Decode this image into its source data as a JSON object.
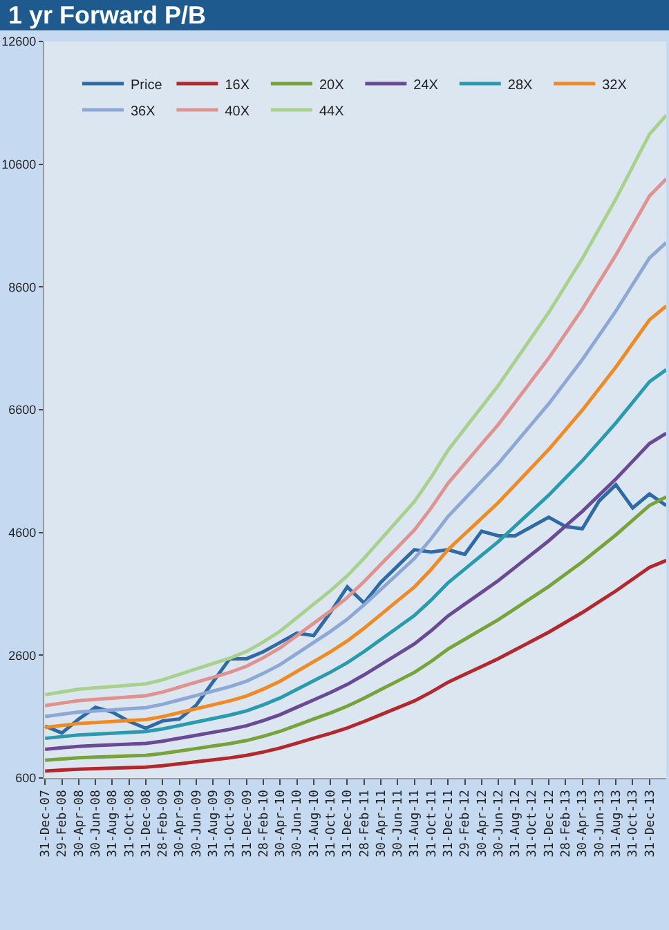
{
  "chart_data": {
    "type": "line",
    "title": "1 yr Forward P/B",
    "categories": [
      "31-Dec-07",
      "29-Feb-08",
      "30-Apr-08",
      "30-Jun-08",
      "31-Aug-08",
      "31-Oct-08",
      "31-Dec-08",
      "28-Feb-09",
      "30-Apr-09",
      "30-Jun-09",
      "31-Aug-09",
      "31-Oct-09",
      "31-Dec-09",
      "28-Feb-10",
      "30-Apr-10",
      "30-Jun-10",
      "31-Aug-10",
      "31-Oct-10",
      "31-Dec-10",
      "28-Feb-11",
      "30-Apr-11",
      "30-Jun-11",
      "31-Aug-11",
      "31-Oct-11",
      "31-Dec-11",
      "29-Feb-12",
      "30-Apr-12",
      "30-Jun-12",
      "31-Aug-12",
      "31-Oct-12",
      "31-Dec-12",
      "28-Feb-13",
      "30-Apr-13",
      "30-Jun-13",
      "31-Aug-13",
      "31-Oct-13",
      "31-Dec-13",
      null
    ],
    "ylim": [
      600,
      12600
    ],
    "yticks": [
      600,
      2600,
      4600,
      6600,
      8600,
      10600,
      12600
    ],
    "grid": false,
    "legend": "top left",
    "marker": "none",
    "line_style": "solid",
    "series": [
      {
        "name": "Price",
        "color": "#2e6aa6",
        "values": [
          1446,
          1333,
          1560,
          1750,
          1673,
          1523,
          1410,
          1530,
          1560,
          1786,
          2165,
          2543,
          2543,
          2657,
          2808,
          2959,
          2921,
          3299,
          3714,
          3450,
          3790,
          4055,
          4320,
          4281,
          4320,
          4244,
          4621,
          4546,
          4546,
          4697,
          4848,
          4697,
          4660,
          5113,
          5377,
          5000,
          5227,
          5038
        ]
      },
      {
        "name": "16X",
        "color": "#b3282d",
        "values": [
          712,
          728,
          744,
          752,
          760,
          768,
          776,
          800,
          832,
          864,
          896,
          928,
          968,
          1024,
          1088,
          1168,
          1248,
          1328,
          1416,
          1520,
          1632,
          1744,
          1856,
          2000,
          2160,
          2288,
          2416,
          2544,
          2688,
          2832,
          2976,
          3136,
          3296,
          3472,
          3648,
          3840,
          4032,
          4144
        ]
      },
      {
        "name": "20X",
        "color": "#77a33a",
        "values": [
          890,
          910,
          930,
          940,
          950,
          960,
          970,
          1000,
          1040,
          1080,
          1120,
          1160,
          1210,
          1280,
          1360,
          1460,
          1560,
          1660,
          1770,
          1900,
          2040,
          2180,
          2320,
          2500,
          2700,
          2860,
          3020,
          3180,
          3360,
          3540,
          3720,
          3920,
          4120,
          4340,
          4560,
          4800,
          5040,
          5180
        ]
      },
      {
        "name": "24X",
        "color": "#6a4a94",
        "values": [
          1068,
          1092,
          1116,
          1128,
          1140,
          1152,
          1164,
          1200,
          1248,
          1296,
          1344,
          1392,
          1452,
          1536,
          1632,
          1752,
          1872,
          1992,
          2124,
          2280,
          2448,
          2616,
          2784,
          3000,
          3240,
          3432,
          3624,
          3816,
          4032,
          4248,
          4464,
          4704,
          4944,
          5208,
          5472,
          5760,
          6048,
          6216
        ]
      },
      {
        "name": "28X",
        "color": "#2a9aaf",
        "values": [
          1246,
          1274,
          1302,
          1316,
          1330,
          1344,
          1358,
          1400,
          1456,
          1512,
          1568,
          1624,
          1694,
          1792,
          1904,
          2044,
          2184,
          2324,
          2478,
          2660,
          2856,
          3052,
          3248,
          3500,
          3780,
          4004,
          4228,
          4452,
          4704,
          4956,
          5208,
          5488,
          5768,
          6076,
          6384,
          6720,
          7056,
          7252
        ]
      },
      {
        "name": "32X",
        "color": "#f08a24",
        "values": [
          1424,
          1456,
          1488,
          1504,
          1520,
          1536,
          1552,
          1600,
          1664,
          1728,
          1792,
          1856,
          1936,
          2048,
          2176,
          2336,
          2496,
          2656,
          2832,
          3040,
          3264,
          3488,
          3712,
          4000,
          4320,
          4576,
          4832,
          5088,
          5376,
          5664,
          5952,
          6272,
          6592,
          6944,
          7296,
          7680,
          8064,
          8288
        ]
      },
      {
        "name": "36X",
        "color": "#8ea8d6",
        "values": [
          1602,
          1638,
          1674,
          1692,
          1710,
          1728,
          1746,
          1800,
          1872,
          1944,
          2016,
          2088,
          2178,
          2304,
          2448,
          2628,
          2808,
          2988,
          3186,
          3420,
          3672,
          3924,
          4176,
          4500,
          4860,
          5148,
          5436,
          5724,
          6048,
          6372,
          6696,
          7056,
          7416,
          7812,
          8208,
          8640,
          9072,
          9324
        ]
      },
      {
        "name": "40X",
        "color": "#df9390",
        "values": [
          1780,
          1820,
          1860,
          1880,
          1900,
          1920,
          1940,
          2000,
          2080,
          2160,
          2240,
          2320,
          2420,
          2560,
          2720,
          2920,
          3120,
          3320,
          3540,
          3800,
          4080,
          4360,
          4640,
          5000,
          5400,
          5720,
          6040,
          6360,
          6720,
          7080,
          7440,
          7840,
          8240,
          8680,
          9120,
          9600,
          10080,
          10360
        ]
      },
      {
        "name": "44X",
        "color": "#a9d18e",
        "values": [
          1958,
          2002,
          2046,
          2068,
          2090,
          2112,
          2134,
          2200,
          2288,
          2376,
          2464,
          2552,
          2662,
          2816,
          2992,
          3212,
          3432,
          3652,
          3894,
          4180,
          4488,
          4796,
          5104,
          5500,
          5940,
          6292,
          6644,
          6996,
          7392,
          7788,
          8184,
          8624,
          9064,
          9548,
          10032,
          10560,
          11088,
          11396
        ]
      }
    ]
  }
}
